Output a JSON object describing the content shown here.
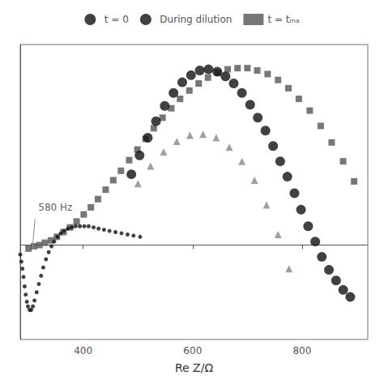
{
  "chart_data": {
    "type": "scatter",
    "x_label": "Re Z/Ω",
    "xlim": [
      285,
      920
    ],
    "ylim": [
      -80,
      170
    ],
    "xticks": [
      400,
      600,
      800
    ],
    "yticks": [],
    "tick_labels": "x",
    "grid": false,
    "legend": "top",
    "annotations": [
      {
        "text": "580 Hz",
        "x": 318,
        "y": 28,
        "line_from": [
          312,
          22
        ],
        "line_to": [
          307,
          -4
        ]
      }
    ],
    "series": [
      {
        "name": "t = 0",
        "color": "#111111",
        "marker": "circle",
        "x": [
          285,
          287,
          289,
          291,
          293,
          295,
          297,
          299,
          302,
          305,
          308,
          311,
          315,
          319,
          323,
          327,
          332,
          337,
          342,
          347,
          353,
          359,
          365,
          372,
          379,
          386,
          394,
          402,
          410,
          419,
          428,
          438,
          448,
          459,
          470,
          481,
          492,
          504
        ],
        "values": [
          -8,
          -14,
          -20,
          -27,
          -35,
          -42,
          -48,
          -52,
          -55,
          -55,
          -52,
          -47,
          -40,
          -33,
          -26,
          -19,
          -12,
          -6,
          -1,
          3,
          7,
          10,
          12,
          14,
          15,
          16,
          16,
          16,
          16,
          15,
          14,
          13,
          12,
          11,
          10,
          9,
          8,
          7
        ]
      },
      {
        "name": "During dilution",
        "color": "#111111",
        "marker": "circle",
        "x": [
          488,
          503,
          518,
          533,
          549,
          565,
          581,
          597,
          613,
          629,
          645,
          660,
          675,
          690,
          705,
          719,
          733,
          747,
          760,
          773,
          786,
          798,
          811,
          824,
          836,
          849,
          862,
          875,
          888
        ],
        "values": [
          60,
          76,
          91,
          105,
          118,
          129,
          138,
          144,
          148,
          149,
          147,
          143,
          137,
          129,
          119,
          108,
          97,
          84,
          71,
          58,
          44,
          30,
          16,
          3,
          -10,
          -21,
          -30,
          -38,
          -44
        ]
      },
      {
        "name": "t = tₘₐ",
        "color": "#555555",
        "marker": "square",
        "x": [
          300,
          310,
          320,
          330,
          341,
          352,
          364,
          376,
          388,
          401,
          414,
          427,
          441,
          455,
          469,
          484,
          499,
          514,
          529,
          545,
          561,
          577,
          594,
          611,
          628,
          646,
          664,
          682,
          700,
          718,
          737,
          756,
          775,
          794,
          814,
          834,
          854,
          875,
          895
        ],
        "values": [
          -3,
          -1,
          0,
          2,
          4,
          7,
          11,
          15,
          20,
          26,
          32,
          39,
          47,
          55,
          63,
          72,
          81,
          90,
          99,
          108,
          116,
          124,
          131,
          137,
          142,
          146,
          149,
          150,
          150,
          148,
          145,
          140,
          133,
          124,
          114,
          101,
          87,
          71,
          54
        ]
      },
      {
        "color": "#888888",
        "marker": "triangle",
        "x": [
          500,
          523,
          547,
          571,
          595,
          619,
          643,
          667,
          690,
          713,
          735,
          756,
          776
        ],
        "values": [
          52,
          67,
          79,
          88,
          93,
          94,
          91,
          83,
          71,
          55,
          34,
          9,
          -20
        ]
      }
    ]
  }
}
